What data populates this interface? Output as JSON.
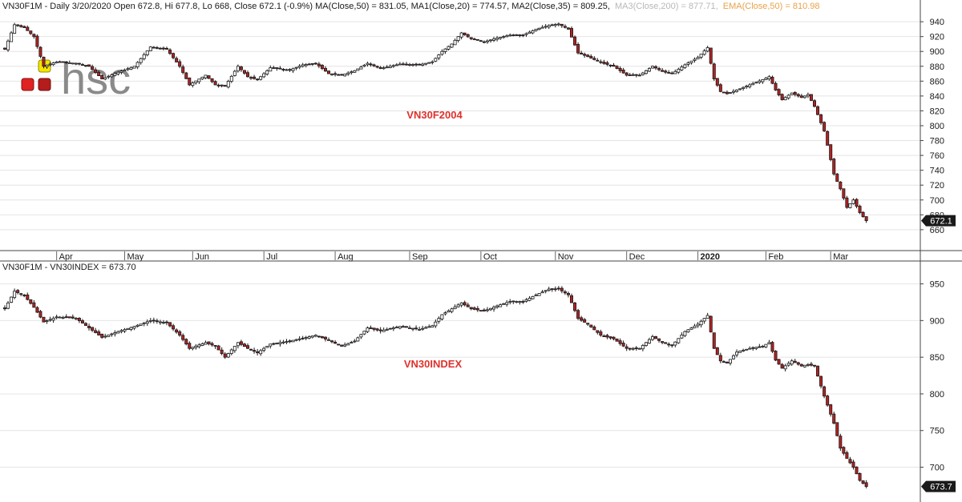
{
  "header": {
    "main": "VN30F1M - Daily 3/20/2020 Open 672.8, Hi 677.8, Lo 668, Close 672.1 (-0.9%) MA(Close,50) = 831.05, MA1(Close,20) = 774.57, MA2(Close,35) = 809.25,",
    "ma3": "MA3(Close,200) = 877.71,",
    "ema": "EMA(Close,50) = 810.98"
  },
  "logo": {
    "text": "hsc"
  },
  "colors": {
    "up": "#ffffff",
    "down": "#b22222",
    "wick": "#1a1a1a",
    "grid": "#e4e4e4",
    "title": "#e0312c",
    "logo_yellow": "#f3e600",
    "logo_red": "#e02222",
    "logo_darkred": "#b51c1c"
  },
  "chart_data": [
    {
      "type": "candlestick",
      "title": "VN30F2004",
      "y_ticks": [
        660,
        680,
        700,
        720,
        740,
        760,
        780,
        800,
        820,
        840,
        860,
        880,
        900,
        920,
        940
      ],
      "ylim": [
        648,
        952
      ],
      "grid": true,
      "last_value_label": "672.1",
      "month_labels": [
        "Apr",
        "May",
        "Jun",
        "Jul",
        "Aug",
        "Sep",
        "Oct",
        "Nov",
        "Dec",
        "2020",
        "Feb",
        "Mar"
      ],
      "bold_month_labels": [
        "2020"
      ],
      "anchors": [
        [
          0,
          903
        ],
        [
          3,
          936
        ],
        [
          6,
          932
        ],
        [
          9,
          920
        ],
        [
          12,
          880
        ],
        [
          16,
          886
        ],
        [
          22,
          884
        ],
        [
          26,
          880
        ],
        [
          30,
          863
        ],
        [
          35,
          872
        ],
        [
          40,
          880
        ],
        [
          45,
          906
        ],
        [
          50,
          903
        ],
        [
          54,
          880
        ],
        [
          57,
          855
        ],
        [
          62,
          868
        ],
        [
          65,
          855
        ],
        [
          68,
          853
        ],
        [
          72,
          880
        ],
        [
          75,
          866
        ],
        [
          78,
          862
        ],
        [
          82,
          878
        ],
        [
          88,
          875
        ],
        [
          92,
          882
        ],
        [
          96,
          884
        ],
        [
          100,
          870
        ],
        [
          104,
          868
        ],
        [
          108,
          874
        ],
        [
          112,
          884
        ],
        [
          116,
          877
        ],
        [
          122,
          883
        ],
        [
          128,
          882
        ],
        [
          132,
          886
        ],
        [
          135,
          900
        ],
        [
          138,
          910
        ],
        [
          141,
          925
        ],
        [
          144,
          917
        ],
        [
          148,
          913
        ],
        [
          152,
          918
        ],
        [
          156,
          922
        ],
        [
          160,
          922
        ],
        [
          164,
          930
        ],
        [
          168,
          935
        ],
        [
          171,
          937
        ],
        [
          174,
          930
        ],
        [
          177,
          898
        ],
        [
          180,
          893
        ],
        [
          184,
          885
        ],
        [
          188,
          880
        ],
        [
          192,
          868
        ],
        [
          196,
          868
        ],
        [
          200,
          880
        ],
        [
          203,
          873
        ],
        [
          206,
          870
        ],
        [
          210,
          882
        ],
        [
          214,
          892
        ],
        [
          217,
          905
        ],
        [
          219,
          863
        ],
        [
          221,
          846
        ],
        [
          223,
          843
        ],
        [
          226,
          848
        ],
        [
          230,
          855
        ],
        [
          234,
          862
        ],
        [
          236,
          866
        ],
        [
          238,
          848
        ],
        [
          240,
          835
        ],
        [
          243,
          844
        ],
        [
          246,
          838
        ],
        [
          248,
          842
        ],
        [
          250,
          826
        ],
        [
          253,
          793
        ],
        [
          256,
          735
        ],
        [
          258,
          715
        ],
        [
          260,
          690
        ],
        [
          262,
          700
        ],
        [
          264,
          683
        ],
        [
          266,
          672.1
        ]
      ]
    },
    {
      "type": "candlestick",
      "title": "VN30INDEX",
      "legend_text": "VN30F1M - VN30INDEX = 673.70",
      "y_ticks": [
        700,
        750,
        800,
        850,
        900,
        950
      ],
      "ylim": [
        658,
        967
      ],
      "grid": true,
      "last_value_label": "673.7",
      "anchors": [
        [
          0,
          916
        ],
        [
          3,
          940
        ],
        [
          6,
          934
        ],
        [
          9,
          918
        ],
        [
          12,
          898
        ],
        [
          16,
          905
        ],
        [
          22,
          903
        ],
        [
          26,
          890
        ],
        [
          30,
          877
        ],
        [
          35,
          885
        ],
        [
          40,
          892
        ],
        [
          45,
          900
        ],
        [
          50,
          897
        ],
        [
          54,
          880
        ],
        [
          57,
          862
        ],
        [
          62,
          870
        ],
        [
          65,
          865
        ],
        [
          68,
          850
        ],
        [
          72,
          870
        ],
        [
          75,
          862
        ],
        [
          78,
          856
        ],
        [
          82,
          868
        ],
        [
          88,
          872
        ],
        [
          92,
          876
        ],
        [
          96,
          880
        ],
        [
          100,
          873
        ],
        [
          104,
          865
        ],
        [
          108,
          872
        ],
        [
          112,
          890
        ],
        [
          116,
          886
        ],
        [
          122,
          892
        ],
        [
          128,
          888
        ],
        [
          132,
          893
        ],
        [
          135,
          908
        ],
        [
          138,
          916
        ],
        [
          141,
          924
        ],
        [
          144,
          916
        ],
        [
          148,
          913
        ],
        [
          152,
          920
        ],
        [
          156,
          926
        ],
        [
          160,
          926
        ],
        [
          164,
          935
        ],
        [
          168,
          943
        ],
        [
          171,
          943
        ],
        [
          174,
          935
        ],
        [
          177,
          903
        ],
        [
          180,
          895
        ],
        [
          184,
          880
        ],
        [
          188,
          875
        ],
        [
          192,
          862
        ],
        [
          196,
          862
        ],
        [
          200,
          878
        ],
        [
          203,
          870
        ],
        [
          206,
          866
        ],
        [
          210,
          885
        ],
        [
          214,
          895
        ],
        [
          217,
          907
        ],
        [
          219,
          862
        ],
        [
          221,
          845
        ],
        [
          223,
          842
        ],
        [
          226,
          857
        ],
        [
          230,
          862
        ],
        [
          234,
          865
        ],
        [
          236,
          870
        ],
        [
          238,
          846
        ],
        [
          240,
          835
        ],
        [
          243,
          845
        ],
        [
          246,
          838
        ],
        [
          248,
          840
        ],
        [
          250,
          838
        ],
        [
          253,
          797
        ],
        [
          256,
          760
        ],
        [
          258,
          726
        ],
        [
          260,
          712
        ],
        [
          262,
          700
        ],
        [
          264,
          682
        ],
        [
          266,
          673.7
        ]
      ]
    }
  ]
}
